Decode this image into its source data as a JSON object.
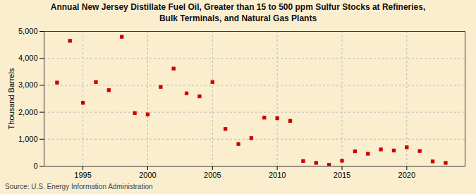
{
  "chart_data": {
    "type": "scatter",
    "title": "Annual New Jersey Distillate Fuel Oil, Greater than 15 to 500 ppm Sulfur Stocks at Refineries,\nBulk Terminals, and Natural Gas Plants",
    "ylabel": "Thousand Barrels",
    "source": "Source: U.S. Energy Information Administration",
    "x": [
      1993,
      1994,
      1995,
      1996,
      1997,
      1998,
      1999,
      2000,
      2001,
      2002,
      2003,
      2004,
      2005,
      2006,
      2007,
      2008,
      2009,
      2010,
      2011,
      2012,
      2013,
      2014,
      2015,
      2016,
      2017,
      2018,
      2019,
      2020,
      2021,
      2022,
      2023
    ],
    "values": [
      3100,
      4650,
      2350,
      3120,
      2820,
      4800,
      1970,
      1920,
      2940,
      3620,
      2700,
      2590,
      3120,
      1380,
      820,
      1040,
      1800,
      1780,
      1680,
      190,
      120,
      50,
      200,
      550,
      460,
      620,
      580,
      700,
      560,
      175,
      120
    ],
    "color": "#cc0000",
    "marker": "square",
    "xlim": [
      1992,
      2024.5
    ],
    "ylim": [
      0,
      5000
    ],
    "xticks": [
      1995,
      2000,
      2005,
      2010,
      2015,
      2020
    ],
    "yticks": [
      0,
      {
        "value": 1000,
        "label": "1,000"
      },
      {
        "value": 2000,
        "label": "2,000"
      },
      {
        "value": 3000,
        "label": "3,000"
      },
      {
        "value": 4000,
        "label": "4,000"
      },
      {
        "value": 5000,
        "label": "5,000"
      }
    ],
    "grid": true
  }
}
